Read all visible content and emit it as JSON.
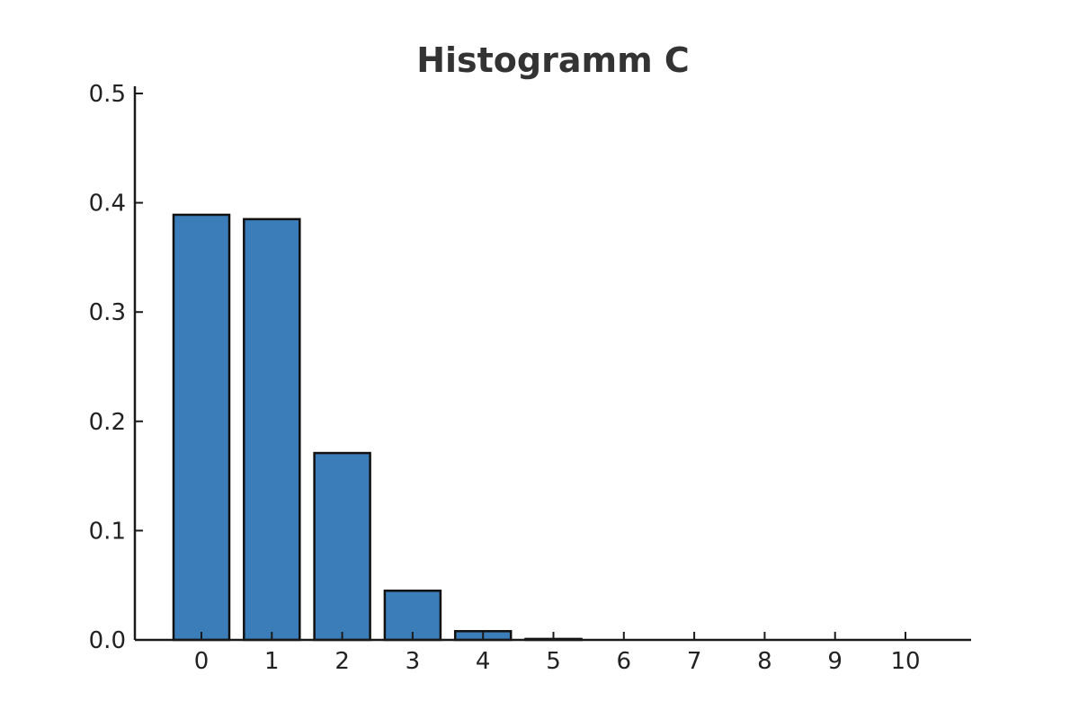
{
  "chart_data": {
    "type": "bar",
    "title": "Histogramm C",
    "xlabel": "",
    "ylabel": "",
    "categories": [
      "0",
      "1",
      "2",
      "3",
      "4",
      "5",
      "6",
      "7",
      "8",
      "9",
      "10"
    ],
    "values": [
      0.389,
      0.385,
      0.171,
      0.045,
      0.008,
      0.0009,
      0.0001,
      0.0,
      0.0,
      0.0,
      0.0
    ],
    "ylim": [
      0,
      0.5
    ],
    "yticks": [
      "0.0",
      "0.1",
      "0.2",
      "0.3",
      "0.4",
      "0.5"
    ],
    "grid": false,
    "legend": "none",
    "bar_color": "#3a7db8",
    "edge_color": "#111111"
  }
}
